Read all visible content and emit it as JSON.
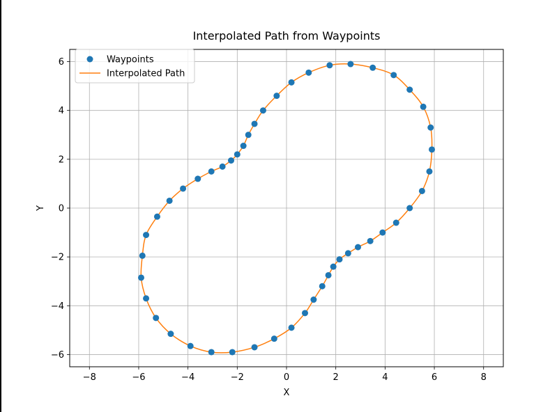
{
  "chart_data": {
    "type": "scatter",
    "title": "Interpolated Path from Waypoints",
    "xlabel": "X",
    "ylabel": "Y",
    "xlim": [
      -8.8,
      8.8
    ],
    "ylim": [
      -6.5,
      6.5
    ],
    "xticks": [
      -8,
      -6,
      -4,
      -2,
      0,
      2,
      4,
      6,
      8
    ],
    "yticks": [
      -6,
      -4,
      -2,
      0,
      2,
      4,
      6
    ],
    "grid": true,
    "legend_position": "top-left",
    "colors": {
      "waypoints": "#1f77b4",
      "path": "#ff7f0e",
      "grid": "#b0b0b0"
    },
    "series": [
      {
        "name": "Waypoints",
        "kind": "scatter",
        "points": [
          [
            2.6,
            5.9
          ],
          [
            3.5,
            5.75
          ],
          [
            4.35,
            5.45
          ],
          [
            5.0,
            4.85
          ],
          [
            5.55,
            4.15
          ],
          [
            5.85,
            3.3
          ],
          [
            5.9,
            2.4
          ],
          [
            5.8,
            1.5
          ],
          [
            5.5,
            0.7
          ],
          [
            5.0,
            0.0
          ],
          [
            4.45,
            -0.6
          ],
          [
            3.9,
            -1.0
          ],
          [
            3.4,
            -1.35
          ],
          [
            2.9,
            -1.6
          ],
          [
            2.5,
            -1.85
          ],
          [
            2.15,
            -2.1
          ],
          [
            1.9,
            -2.4
          ],
          [
            1.7,
            -2.75
          ],
          [
            1.45,
            -3.2
          ],
          [
            1.1,
            -3.75
          ],
          [
            0.75,
            -4.3
          ],
          [
            0.2,
            -4.9
          ],
          [
            -0.5,
            -5.35
          ],
          [
            -1.3,
            -5.7
          ],
          [
            -2.2,
            -5.9
          ],
          [
            -3.05,
            -5.9
          ],
          [
            -3.9,
            -5.65
          ],
          [
            -4.7,
            -5.15
          ],
          [
            -5.3,
            -4.5
          ],
          [
            -5.7,
            -3.7
          ],
          [
            -5.9,
            -2.85
          ],
          [
            -5.85,
            -1.95
          ],
          [
            -5.7,
            -1.1
          ],
          [
            -5.25,
            -0.35
          ],
          [
            -4.75,
            0.3
          ],
          [
            -4.2,
            0.8
          ],
          [
            -3.6,
            1.2
          ],
          [
            -3.05,
            1.5
          ],
          [
            -2.6,
            1.7
          ],
          [
            -2.25,
            1.95
          ],
          [
            -2.0,
            2.2
          ],
          [
            -1.75,
            2.55
          ],
          [
            -1.55,
            3.0
          ],
          [
            -1.3,
            3.45
          ],
          [
            -0.95,
            4.0
          ],
          [
            -0.4,
            4.6
          ],
          [
            0.2,
            5.15
          ],
          [
            0.9,
            5.55
          ],
          [
            1.75,
            5.85
          ]
        ]
      },
      {
        "name": "Interpolated Path",
        "kind": "line",
        "points": [
          [
            2.6,
            5.9
          ],
          [
            3.5,
            5.75
          ],
          [
            4.35,
            5.45
          ],
          [
            5.0,
            4.85
          ],
          [
            5.55,
            4.15
          ],
          [
            5.85,
            3.3
          ],
          [
            5.9,
            2.4
          ],
          [
            5.8,
            1.5
          ],
          [
            5.5,
            0.7
          ],
          [
            5.0,
            0.0
          ],
          [
            4.45,
            -0.6
          ],
          [
            3.9,
            -1.0
          ],
          [
            3.4,
            -1.35
          ],
          [
            2.9,
            -1.6
          ],
          [
            2.5,
            -1.85
          ],
          [
            2.15,
            -2.1
          ],
          [
            1.9,
            -2.4
          ],
          [
            1.7,
            -2.75
          ],
          [
            1.45,
            -3.2
          ],
          [
            1.1,
            -3.75
          ],
          [
            0.75,
            -4.3
          ],
          [
            0.2,
            -4.9
          ],
          [
            -0.5,
            -5.35
          ],
          [
            -1.3,
            -5.7
          ],
          [
            -2.2,
            -5.9
          ],
          [
            -3.05,
            -5.9
          ],
          [
            -3.9,
            -5.65
          ],
          [
            -4.7,
            -5.15
          ],
          [
            -5.3,
            -4.5
          ],
          [
            -5.7,
            -3.7
          ],
          [
            -5.9,
            -2.85
          ],
          [
            -5.85,
            -1.95
          ],
          [
            -5.7,
            -1.1
          ],
          [
            -5.25,
            -0.35
          ],
          [
            -4.75,
            0.3
          ],
          [
            -4.2,
            0.8
          ],
          [
            -3.6,
            1.2
          ],
          [
            -3.05,
            1.5
          ],
          [
            -2.6,
            1.7
          ],
          [
            -2.25,
            1.95
          ],
          [
            -2.0,
            2.2
          ],
          [
            -1.75,
            2.55
          ],
          [
            -1.55,
            3.0
          ],
          [
            -1.3,
            3.45
          ],
          [
            -0.95,
            4.0
          ],
          [
            -0.4,
            4.6
          ],
          [
            0.2,
            5.15
          ],
          [
            0.9,
            5.55
          ],
          [
            1.75,
            5.85
          ],
          [
            2.6,
            5.9
          ]
        ]
      }
    ]
  }
}
